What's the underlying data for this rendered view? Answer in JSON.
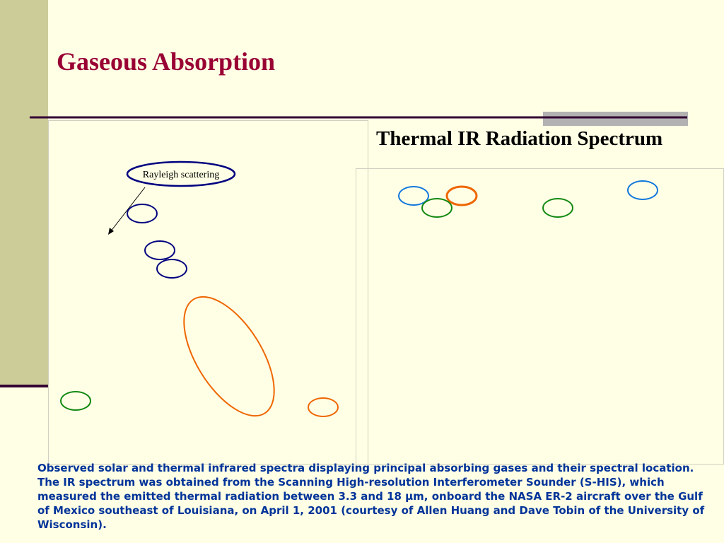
{
  "slide": {
    "title": "Gaseous Absorption",
    "subtitle": "Thermal IR Radiation Spectrum",
    "annotation": "Rayleigh scattering",
    "caption": "Observed solar and thermal infrared spectra displaying principal absorbing gases and their spectral location.  The IR spectrum was obtained from the Scanning High-resolution Interferometer Sounder (S-HIS), which measured the emitted thermal radiation between 3.3 and 18 μm, onboard the NASA ER-2 aircraft over the Gulf of Mexico southeast of Louisiana, on April 1, 2001 (courtesy of Allen Huang and Dave Tobin of the University of Wisconsin)."
  }
}
